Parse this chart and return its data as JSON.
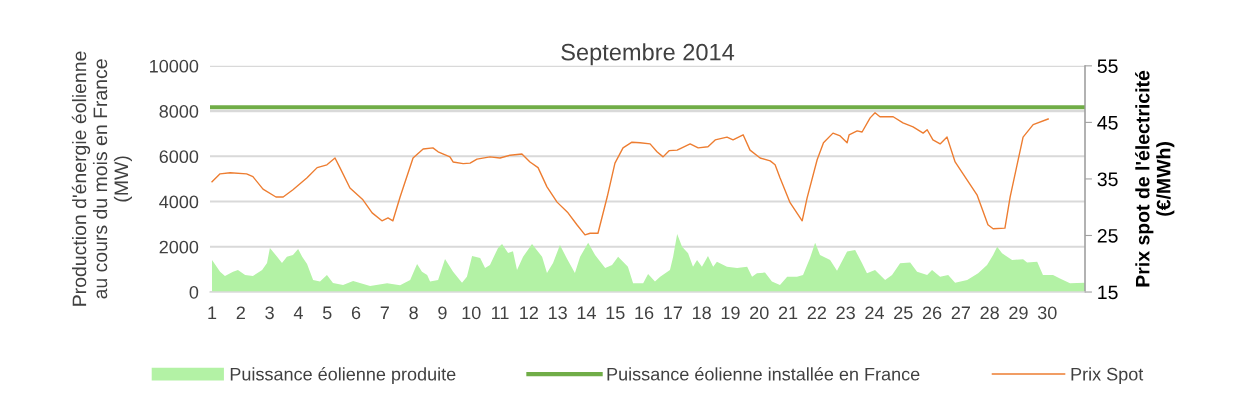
{
  "chart_data": {
    "type": "area",
    "title": "Septembre 2014",
    "ylabel": "Production d'énergie éolienne\nau cours du mois en France\n(MW)",
    "y2label": "Prix spot de l'électricité\n(€/MWh)",
    "xlim": [
      0.93,
      31.31
    ],
    "xticks": [
      1,
      2,
      3,
      4,
      5,
      6,
      7,
      8,
      9,
      10,
      11,
      12,
      13,
      14,
      15,
      16,
      17,
      18,
      19,
      20,
      21,
      22,
      23,
      24,
      25,
      26,
      27,
      28,
      29,
      30
    ],
    "ylim": [
      0,
      10000
    ],
    "yticks": [
      0,
      2000,
      4000,
      6000,
      8000,
      10000
    ],
    "y2lim": [
      15,
      55
    ],
    "y2ticks": [
      15,
      25,
      35,
      45,
      55
    ],
    "grid": "y",
    "legend": "bottom",
    "marker": "none",
    "line_style": "solid",
    "series": [
      {
        "name": "Puissance éolienne produite",
        "axis": "y",
        "color": "#b3f2a5",
        "x": [
          1.0,
          1.28,
          1.45,
          1.73,
          1.9,
          2.15,
          2.42,
          2.74,
          2.91,
          3.01,
          3.26,
          3.43,
          3.6,
          3.81,
          3.99,
          4.13,
          4.3,
          4.51,
          4.75,
          4.99,
          5.2,
          5.55,
          5.9,
          6.49,
          7.08,
          7.53,
          7.88,
          8.12,
          8.29,
          8.47,
          8.57,
          8.85,
          9.09,
          9.37,
          9.68,
          9.85,
          10.03,
          10.31,
          10.48,
          10.65,
          10.93,
          11.07,
          11.28,
          11.45,
          11.59,
          11.8,
          12.11,
          12.46,
          12.63,
          12.84,
          13.08,
          13.33,
          13.6,
          13.78,
          14.06,
          14.3,
          14.65,
          14.89,
          15.1,
          15.44,
          15.62,
          15.97,
          16.14,
          16.38,
          16.56,
          16.9,
          17.01,
          17.15,
          17.32,
          17.53,
          17.7,
          17.84,
          18.01,
          18.22,
          18.4,
          18.53,
          18.88,
          19.23,
          19.58,
          19.75,
          19.92,
          20.2,
          20.44,
          20.72,
          20.97,
          21.31,
          21.52,
          21.76,
          21.94,
          22.11,
          22.46,
          22.7,
          23.05,
          23.33,
          23.57,
          23.74,
          24.02,
          24.37,
          24.61,
          24.89,
          25.24,
          25.48,
          25.83,
          26.0,
          26.28,
          26.56,
          26.8,
          27.22,
          27.6,
          27.91,
          28.12,
          28.26,
          28.43,
          28.78,
          29.16,
          29.3,
          29.65,
          29.85,
          30.2,
          30.44,
          30.79,
          31.31
        ],
        "values": [
          1420,
          900,
          710,
          900,
          970,
          750,
          710,
          970,
          1280,
          1950,
          1560,
          1280,
          1560,
          1640,
          1900,
          1560,
          1240,
          530,
          460,
          750,
          400,
          310,
          490,
          270,
          390,
          300,
          530,
          1240,
          900,
          750,
          460,
          530,
          1460,
          900,
          410,
          680,
          1590,
          1500,
          1060,
          1200,
          1950,
          2120,
          1730,
          1800,
          970,
          1560,
          2120,
          1560,
          840,
          1280,
          2080,
          1460,
          840,
          1560,
          2180,
          1640,
          1060,
          1200,
          1560,
          1120,
          390,
          390,
          800,
          460,
          680,
          970,
          1560,
          2570,
          2000,
          1710,
          1120,
          1420,
          1120,
          1590,
          1120,
          1340,
          1120,
          1060,
          1120,
          680,
          830,
          860,
          460,
          310,
          680,
          680,
          750,
          1490,
          2180,
          1640,
          1420,
          940,
          1790,
          1860,
          1270,
          830,
          970,
          530,
          750,
          1270,
          1300,
          900,
          750,
          970,
          680,
          750,
          410,
          530,
          830,
          1200,
          1640,
          2000,
          1710,
          1420,
          1450,
          1300,
          1340,
          750,
          750,
          600,
          390,
          410
        ]
      },
      {
        "name": "Puissance éolienne installée en France",
        "type": "line",
        "axis": "y",
        "color": "#70ad47",
        "x": [
          0.93,
          31.31
        ],
        "values": [
          8170,
          8170
        ]
      },
      {
        "name": "Prix Spot",
        "type": "line",
        "axis": "y2",
        "color": "#ed7d31",
        "x": [
          1.0,
          1.28,
          1.63,
          2.2,
          2.42,
          2.77,
          3.22,
          3.47,
          3.81,
          4.3,
          4.65,
          4.99,
          5.27,
          5.44,
          5.79,
          6.24,
          6.56,
          6.9,
          7.11,
          7.28,
          7.53,
          7.98,
          8.33,
          8.67,
          8.85,
          9.26,
          9.37,
          9.72,
          9.96,
          10.2,
          10.65,
          11.0,
          11.35,
          11.76,
          12.04,
          12.32,
          12.63,
          12.98,
          13.36,
          13.67,
          13.95,
          14.13,
          14.4,
          14.72,
          14.99,
          15.27,
          15.58,
          15.86,
          16.21,
          16.45,
          16.66,
          16.87,
          17.15,
          17.6,
          17.88,
          18.22,
          18.47,
          18.88,
          19.09,
          19.44,
          19.68,
          20.03,
          20.38,
          20.55,
          20.72,
          21.07,
          21.49,
          21.66,
          22.01,
          22.23,
          22.56,
          22.81,
          23.05,
          23.12,
          23.4,
          23.57,
          23.85,
          24.02,
          24.19,
          24.65,
          24.99,
          25.34,
          25.69,
          25.83,
          26.03,
          26.28,
          26.52,
          26.8,
          27.22,
          27.56,
          27.94,
          28.12,
          28.53,
          28.71,
          29.16,
          29.51,
          30.03
        ],
        "values": [
          34.5,
          35.9,
          36.1,
          35.9,
          35.4,
          33.2,
          31.8,
          31.8,
          33.1,
          35.2,
          37.0,
          37.5,
          38.7,
          37.0,
          33.4,
          31.3,
          29.0,
          27.6,
          28.1,
          27.6,
          31.8,
          38.7,
          40.3,
          40.5,
          39.8,
          38.9,
          38.0,
          37.7,
          37.8,
          38.5,
          38.9,
          38.7,
          39.2,
          39.4,
          38.0,
          37.0,
          33.6,
          30.9,
          29.0,
          26.9,
          25.1,
          25.4,
          25.4,
          31.8,
          37.8,
          40.5,
          41.5,
          41.4,
          41.2,
          39.8,
          38.9,
          40.0,
          40.1,
          41.2,
          40.5,
          40.7,
          41.9,
          42.4,
          41.9,
          42.8,
          40.1,
          38.7,
          38.2,
          37.5,
          35.2,
          30.8,
          27.6,
          31.6,
          38.4,
          41.4,
          43.1,
          42.6,
          41.4,
          42.8,
          43.5,
          43.3,
          45.8,
          46.7,
          46.0,
          46.0,
          44.9,
          44.2,
          43.1,
          43.7,
          41.9,
          41.2,
          42.4,
          38.0,
          34.8,
          32.2,
          26.9,
          26.2,
          26.3,
          31.8,
          42.4,
          44.6,
          45.6
        ]
      }
    ]
  }
}
